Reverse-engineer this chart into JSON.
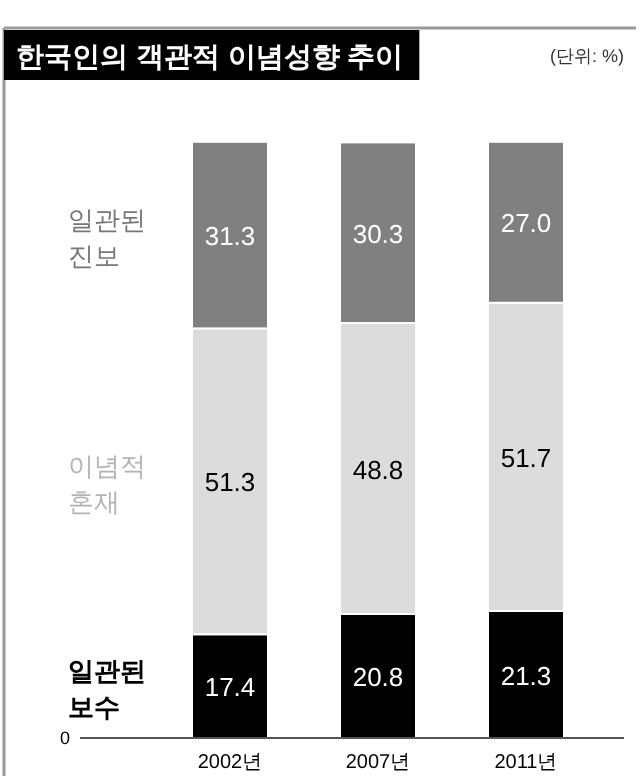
{
  "chart_data": {
    "type": "bar",
    "stacked": true,
    "title": "한국인의 객관적 이념성향 추이",
    "subtitle": "(단위: %)",
    "categories": [
      "2002년",
      "2007년",
      "2011년"
    ],
    "series": [
      {
        "name": "일관된 보수",
        "color": "#000000",
        "values": [
          17.4,
          20.8,
          21.3
        ],
        "value_labels": [
          "17.4",
          "20.8",
          "21.3"
        ]
      },
      {
        "name": "이념적 혼재",
        "color": "#dcdcdc",
        "values": [
          51.3,
          48.8,
          51.7
        ],
        "value_labels": [
          "51.3",
          "48.8",
          "51.7"
        ]
      },
      {
        "name": "일관된 진보",
        "color": "#808080",
        "values": [
          31.3,
          30.3,
          27.0
        ],
        "value_labels": [
          "31.3",
          "30.3",
          "27.0"
        ]
      }
    ],
    "annotations": [
      "0"
    ],
    "legend": "left"
  }
}
